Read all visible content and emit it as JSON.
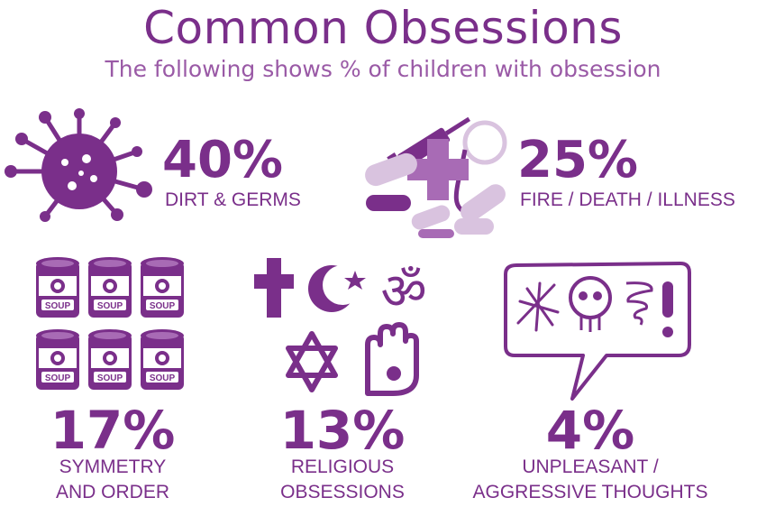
{
  "header": {
    "title": "Common Obsessions",
    "subtitle": "The following shows % of children with obsession"
  },
  "stats": [
    {
      "value": 40,
      "display": "40%",
      "label": "DIRT & GERMS",
      "icon": "germ-icon"
    },
    {
      "value": 25,
      "display": "25%",
      "label": "FIRE / DEATH / ILLNESS",
      "icon": "medical-supplies-icon"
    },
    {
      "value": 17,
      "display": "17%",
      "label_lines": [
        "SYMMETRY",
        "AND ORDER"
      ],
      "icon": "soup-cans-icon"
    },
    {
      "value": 13,
      "display": "13%",
      "label_lines": [
        "RELIGIOUS",
        "OBSESSIONS"
      ],
      "icon": "religious-symbols-icon"
    },
    {
      "value": 4,
      "display": "4%",
      "label_lines": [
        "UNPLEASANT /",
        "AGGRESSIVE THOUGHTS"
      ],
      "icon": "speech-bubble-icon"
    }
  ],
  "soup_can_label": "SOUP",
  "colors": {
    "primary": "#7a2f8a",
    "light": "#d9c3df",
    "mid": "#a86bb5"
  }
}
